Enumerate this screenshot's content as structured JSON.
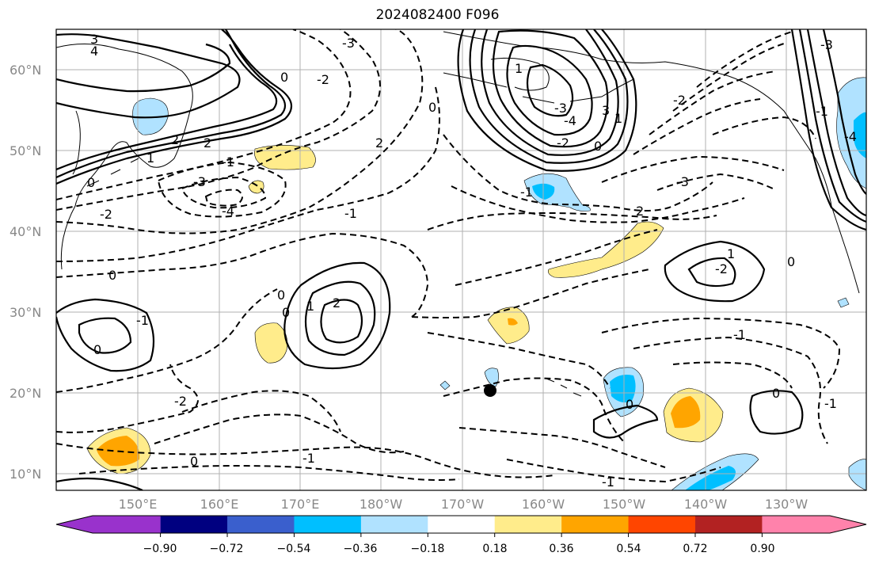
{
  "title": "2024082400 F096",
  "map": {
    "lat_labels": [
      "60°N",
      "50°N",
      "40°N",
      "30°N",
      "20°N",
      "10°N"
    ],
    "lon_labels": [
      "150°E",
      "160°E",
      "170°E",
      "180°W",
      "170°W",
      "160°W",
      "150°W",
      "140°W",
      "130°W"
    ]
  },
  "contour_labels": [
    "3",
    "4",
    "2",
    "2",
    "1",
    "0",
    "-1",
    "-2",
    "-3",
    "0",
    "-2",
    "-3",
    "-4",
    "0",
    "2",
    "-1",
    "0",
    "1",
    "2",
    "0",
    "-1",
    "-2",
    "0",
    "0",
    "1",
    "-3",
    "-4",
    "-2",
    "3",
    "-1",
    "0",
    "1",
    "2",
    "1",
    "0",
    "-1",
    "0",
    "-1",
    "-2",
    "0",
    "-1",
    "0",
    "-4",
    "-3",
    "-1",
    "-2",
    "-1",
    "-3"
  ],
  "colorbar": {
    "ticks": [
      "−0.90",
      "−0.72",
      "−0.54",
      "−0.36",
      "−0.18",
      "0.18",
      "0.36",
      "0.54",
      "0.72",
      "0.90"
    ],
    "colors": [
      "#9932cc",
      "#000080",
      "#3a5fcd",
      "#00bfff",
      "#b0e2ff",
      "#ffffff",
      "#ffec8b",
      "#ffa500",
      "#ff4500",
      "#b22222",
      "#ff82ab"
    ]
  },
  "marker": {
    "type": "dot",
    "color": "#000000"
  }
}
